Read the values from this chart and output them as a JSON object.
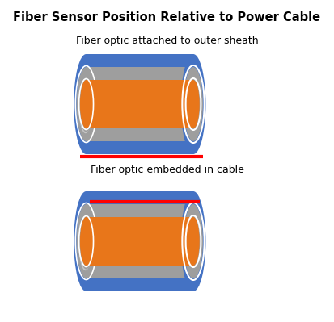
{
  "title": "Fiber Sensor Position Relative to Power Cable",
  "label_top": "Fiber optic attached to outer sheath",
  "label_bottom": "Fiber optic embedded in cable",
  "bg_color": "#ffffff",
  "title_fontsize": 10.5,
  "label_fontsize": 9,
  "cable_blue": "#4472C4",
  "cable_gray": "#9E9E9E",
  "cable_orange": "#E8761A",
  "fiber_red": "#FF0000",
  "white_highlight": "#ffffff",
  "cable_blue_dark": "#3560A8"
}
